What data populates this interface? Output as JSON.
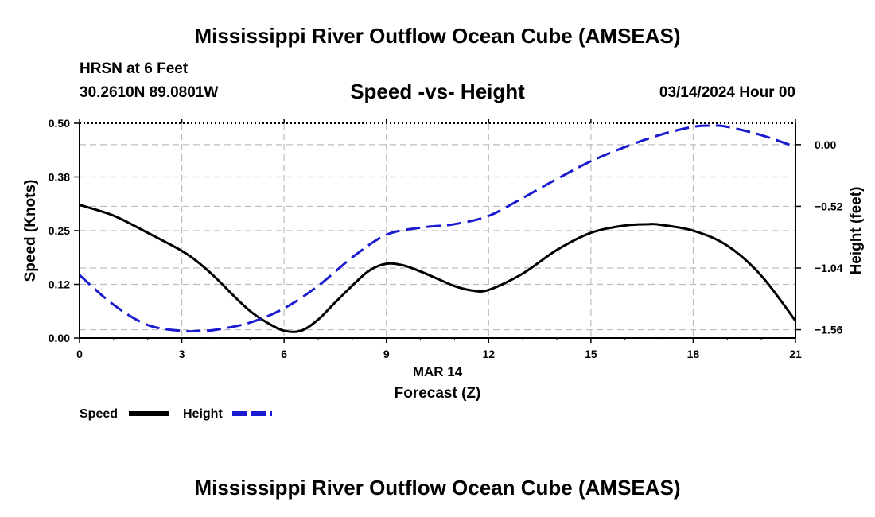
{
  "header": {
    "title": "Mississippi River Outflow Ocean Cube (AMSEAS)",
    "station": "HRSN at 6 Feet",
    "coords": "30.2610N  89.0801W",
    "subtitle": "Speed -vs- Height",
    "datetime": "03/14/2024 Hour 00"
  },
  "footer": {
    "title": "Mississippi River Outflow Ocean Cube (AMSEAS)"
  },
  "chart_data": {
    "type": "line",
    "title": "Speed -vs- Height",
    "xlabel": "Forecast (Z)",
    "xdate_label": "MAR 14",
    "ylabel": "Speed (Knots)",
    "y2label": "Height (feet)",
    "xlim": [
      0,
      21
    ],
    "ylim": [
      0,
      0.5
    ],
    "y2lim": [
      -1.63,
      0.18
    ],
    "xticks": [
      0,
      3,
      6,
      9,
      12,
      15,
      18,
      21
    ],
    "xtick_labels": [
      "0",
      "3",
      "6",
      "9",
      "12",
      "15",
      "18",
      "21"
    ],
    "yticks": [
      0,
      0.125,
      0.25,
      0.375,
      0.5
    ],
    "ytick_labels": [
      "0.00",
      "0.12",
      "0.25",
      "0.38",
      "0.50"
    ],
    "y2ticks": [
      -1.56,
      -1.04,
      -0.52,
      0.0
    ],
    "y2tick_labels": [
      "−1.56",
      "−1.04",
      "−0.52",
      "0.00"
    ],
    "grid": true,
    "legend_position": "bottom-left",
    "series": [
      {
        "name": "Speed",
        "axis": "left",
        "color": "#000000",
        "style": "solid",
        "x": [
          0,
          1,
          2,
          3,
          3.5,
          4,
          4.5,
          5,
          5.5,
          6,
          6.5,
          7,
          7.5,
          8,
          8.5,
          9,
          9.5,
          10,
          10.5,
          11,
          11.5,
          12,
          13,
          14,
          15,
          16,
          16.7,
          17,
          18,
          19,
          20,
          21
        ],
        "values": [
          0.31,
          0.285,
          0.245,
          0.203,
          0.175,
          0.14,
          0.1,
          0.063,
          0.036,
          0.017,
          0.017,
          0.043,
          0.083,
          0.122,
          0.157,
          0.173,
          0.169,
          0.155,
          0.138,
          0.121,
          0.111,
          0.112,
          0.15,
          0.205,
          0.245,
          0.262,
          0.265,
          0.264,
          0.25,
          0.215,
          0.145,
          0.04
        ]
      },
      {
        "name": "Height",
        "axis": "right",
        "color": "#1a1ad0",
        "style": "dashed",
        "x": [
          0,
          1,
          2,
          3,
          3.5,
          4,
          5,
          6,
          7,
          8,
          9,
          10,
          11,
          12,
          13,
          14,
          15,
          16,
          17,
          18,
          18.6,
          19,
          20,
          21
        ],
        "values": [
          -1.1,
          -1.35,
          -1.52,
          -1.57,
          -1.57,
          -1.56,
          -1.5,
          -1.38,
          -1.19,
          -0.95,
          -0.76,
          -0.7,
          -0.67,
          -0.6,
          -0.45,
          -0.29,
          -0.14,
          -0.02,
          0.08,
          0.15,
          0.16,
          0.15,
          0.08,
          -0.02
        ]
      }
    ]
  }
}
